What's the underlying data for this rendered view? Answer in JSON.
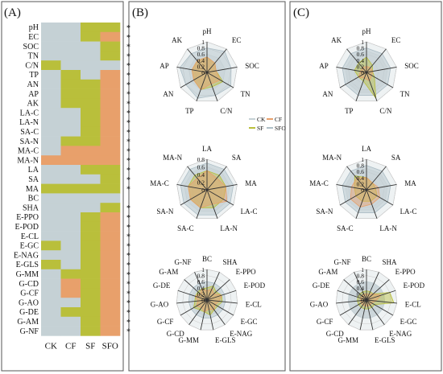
{
  "colors": {
    "CK": "#c5d1d5",
    "CF": "#e8a06b",
    "SF": "#b9bf3b",
    "SFO": "#aebfc7",
    "panel_border": "#555555",
    "divider": "#333333"
  },
  "chart_data": [
    {
      "type": "heatmap",
      "panel": "(A)",
      "columns": [
        "CK",
        "CF",
        "SF",
        "SFO"
      ],
      "rows": [
        "pH",
        "EC",
        "SOC",
        "TN",
        "C/N",
        "TP",
        "AN",
        "AP",
        "AK",
        "LA-C",
        "LA-N",
        "SA-C",
        "SA-N",
        "MA-C",
        "MA-N",
        "LA",
        "SA",
        "MA",
        "BC",
        "SHA",
        "E-PPO",
        "E-POD",
        "E-CL",
        "E-GC",
        "E-NAG",
        "E-GLS",
        "G-MM",
        "G-CD",
        "G-CF",
        "G-AO",
        "G-DE",
        "G-AM",
        "G-NF"
      ],
      "cells": [
        [
          "CK",
          "CK",
          "SF",
          "SF"
        ],
        [
          "CK",
          "CK",
          "SF",
          "CF"
        ],
        [
          "CK",
          "CK",
          "CK",
          "SF"
        ],
        [
          "CK",
          "CK",
          "CK",
          "SF"
        ],
        [
          "SF",
          "CK",
          "CK",
          "CK"
        ],
        [
          "CK",
          "SF",
          "CK",
          "CF"
        ],
        [
          "CK",
          "SF",
          "SF",
          "CF"
        ],
        [
          "CK",
          "SF",
          "SF",
          "CF"
        ],
        [
          "CK",
          "SF",
          "SF",
          "CF"
        ],
        [
          "CK",
          "CK",
          "SF",
          "CF"
        ],
        [
          "CK",
          "CK",
          "SF",
          "CF"
        ],
        [
          "CK",
          "CK",
          "SF",
          "CF"
        ],
        [
          "CK",
          "SF",
          "SF",
          "CF"
        ],
        [
          "CK",
          "CF",
          "CF",
          "CF"
        ],
        [
          "CF",
          "CF",
          "CF",
          "CF"
        ],
        [
          "CK",
          "CK",
          "SF",
          "SF"
        ],
        [
          "CK",
          "CK",
          "CK",
          "SF"
        ],
        [
          "SF",
          "SF",
          "SF",
          "SF"
        ],
        [
          "CK",
          "CK",
          "CK",
          "CK"
        ],
        [
          "CK",
          "CK",
          "CK",
          "SF"
        ],
        [
          "CK",
          "CK",
          "SF",
          "CF"
        ],
        [
          "CK",
          "CK",
          "SF",
          "CF"
        ],
        [
          "CK",
          "CK",
          "SF",
          "CF"
        ],
        [
          "SF",
          "CK",
          "SF",
          "CF"
        ],
        [
          "CK",
          "CK",
          "SF",
          "CF"
        ],
        [
          "SF",
          "CK",
          "SF",
          "CF"
        ],
        [
          "CK",
          "SF",
          "SF",
          "CF"
        ],
        [
          "CK",
          "CF",
          "SF",
          "CF"
        ],
        [
          "CK",
          "CF",
          "SF",
          "CF"
        ],
        [
          "CK",
          "CK",
          "SF",
          "CF"
        ],
        [
          "CK",
          "SF",
          "SF",
          "CF"
        ],
        [
          "CK",
          "CK",
          "SF",
          "CF"
        ],
        [
          "CK",
          "CK",
          "SF",
          "CF"
        ]
      ],
      "significance": [
        "*",
        "*",
        "*",
        "*",
        "*",
        "*",
        "*",
        "*",
        "*",
        "*",
        "*",
        "*",
        "*",
        "*",
        "*",
        "*",
        "*",
        "*",
        "",
        "*",
        "*",
        "*",
        "*",
        "*",
        "*",
        "*",
        "*",
        "*",
        "*",
        "*",
        "*",
        "*",
        "*"
      ]
    },
    {
      "type": "radar",
      "panel": "(B)",
      "legend": [
        "CK",
        "CF",
        "SF",
        "SFO"
      ],
      "charts": [
        {
          "axes": [
            "pH",
            "EC",
            "SOC",
            "TN",
            "C/N",
            "TP",
            "AN",
            "AP",
            "AK"
          ],
          "ticks": [
            "0",
            "0.2",
            "0.4",
            "0.6",
            "0.8",
            "1"
          ],
          "max": 1,
          "series": {
            "CK": [
              0.6,
              0.6,
              0.6,
              0.6,
              0.6,
              0.6,
              0.6,
              0.6,
              0.6
            ],
            "CF": [
              0.5,
              0.4,
              0.3,
              0.5,
              0.4,
              0.6,
              0.5,
              0.5,
              0.5
            ],
            "SF": [
              0.5,
              0.4,
              0.3,
              0.6,
              0.5,
              0.6,
              0.5,
              0.5,
              0.5
            ],
            "SFO": [
              0.8,
              0.9,
              0.8,
              0.9,
              0.8,
              0.9,
              0.8,
              0.9,
              0.8
            ]
          }
        },
        {
          "axes": [
            "LA",
            "SA",
            "MA",
            "LA-C",
            "LA-N",
            "SA-C",
            "SA-N",
            "MA-C",
            "MA-N"
          ],
          "ticks": [
            "0",
            "0.2",
            "0.4",
            "0.6",
            "0.8"
          ],
          "max": 0.8,
          "series": {
            "CK": [
              0.6,
              0.6,
              0.6,
              0.6,
              0.6,
              0.6,
              0.6,
              0.6,
              0.6
            ],
            "CF": [
              0.5,
              0.4,
              0.5,
              0.6,
              0.4,
              0.5,
              0.5,
              0.5,
              0.4
            ],
            "SF": [
              0.5,
              0.5,
              0.5,
              0.5,
              0.5,
              0.5,
              0.5,
              0.5,
              0.5
            ],
            "SFO": [
              0.7,
              0.7,
              0.7,
              0.7,
              0.7,
              0.7,
              0.7,
              0.7,
              0.7
            ]
          }
        },
        {
          "axes": [
            "BC",
            "SHA",
            "E-PPO",
            "E-POD",
            "E-CL",
            "E-GC",
            "E-NAG",
            "E-GLS",
            "G-MM",
            "G-CD",
            "G-CF",
            "G-AO",
            "G-DE",
            "G-AM",
            "G-NF"
          ],
          "ticks": [
            "0",
            "0.2",
            "0.4",
            "0.6",
            "0.8",
            "1"
          ],
          "max": 1,
          "series": {
            "CK": [
              0.5,
              0.5,
              0.5,
              0.5,
              0.5,
              0.5,
              0.5,
              0.5,
              0.5,
              0.5,
              0.5,
              0.5,
              0.5,
              0.5,
              0.5
            ],
            "CF": [
              0.3,
              0.4,
              0.3,
              0.5,
              0.4,
              0.3,
              0.4,
              0.3,
              0.4,
              0.3,
              0.4,
              0.3,
              0.4,
              0.3,
              0.4
            ],
            "SF": [
              0.4,
              0.5,
              0.4,
              0.5,
              0.5,
              0.4,
              0.4,
              0.5,
              0.4,
              0.4,
              0.5,
              0.4,
              0.4,
              0.4,
              0.4
            ],
            "SFO": [
              0.6,
              0.6,
              0.6,
              0.6,
              0.6,
              0.6,
              0.6,
              0.6,
              0.6,
              0.6,
              0.6,
              0.6,
              0.6,
              0.6,
              0.6
            ]
          }
        }
      ]
    },
    {
      "type": "radar",
      "panel": "(C)",
      "legend": [],
      "charts": [
        {
          "axes": [
            "pH",
            "EC",
            "SOC",
            "TN",
            "C/N",
            "TP",
            "AN",
            "AP",
            "AK"
          ],
          "ticks": [
            "0",
            "0.2",
            "0.4",
            "0.6",
            "0.8",
            "1"
          ],
          "max": 1,
          "series": {
            "CK": [
              0.7,
              0.7,
              0.7,
              0.7,
              0.7,
              0.7,
              0.7,
              0.7,
              0.7
            ],
            "CF": [
              0.2,
              0.2,
              0.2,
              0.2,
              0.3,
              0.2,
              0.3,
              0.2,
              0.2
            ],
            "SF": [
              0.5,
              0.3,
              0.2,
              0.3,
              0.9,
              0.3,
              0.3,
              0.4,
              0.4
            ],
            "SFO": [
              0.8,
              0.8,
              0.8,
              0.8,
              0.8,
              0.8,
              0.8,
              0.8,
              0.8
            ]
          }
        },
        {
          "axes": [
            "LA",
            "SA",
            "MA",
            "LA-C",
            "LA-N",
            "SA-C",
            "SA-N",
            "MA-C",
            "MA-N"
          ],
          "ticks": [
            "0",
            "0.2",
            "0.4",
            "0.6",
            "0.8",
            "1"
          ],
          "max": 1,
          "series": {
            "CK": [
              0.7,
              0.7,
              0.7,
              0.7,
              0.7,
              0.7,
              0.7,
              0.7,
              0.7
            ],
            "CF": [
              0.4,
              0.3,
              0.4,
              0.5,
              0.5,
              0.6,
              0.6,
              0.5,
              0.5
            ],
            "SF": [
              0.4,
              0.3,
              0.3,
              0.4,
              0.4,
              0.4,
              0.4,
              0.4,
              0.6
            ],
            "SFO": [
              0.8,
              0.8,
              0.8,
              0.8,
              0.8,
              0.8,
              0.8,
              0.8,
              0.8
            ]
          }
        },
        {
          "axes": [
            "BC",
            "SHA",
            "E-PPO",
            "E-POD",
            "E-CL",
            "E-GC",
            "E-NAG",
            "E-GLS",
            "G-MM",
            "G-CD",
            "G-CF",
            "G-AO",
            "G-DE",
            "G-AM",
            "G-NF"
          ],
          "ticks": [
            "0",
            "0.2",
            "0.4",
            "0.6",
            "0.8",
            "1"
          ],
          "max": 1,
          "series": {
            "CK": [
              0.6,
              0.6,
              0.6,
              0.6,
              0.6,
              0.6,
              0.6,
              0.6,
              0.6,
              0.6,
              0.6,
              0.6,
              0.6,
              0.6,
              0.6
            ],
            "CF": [
              0.2,
              0.2,
              0.3,
              0.5,
              0.3,
              0.2,
              0.2,
              0.2,
              0.2,
              0.2,
              0.2,
              0.2,
              0.2,
              0.2,
              0.2
            ],
            "SF": [
              0.3,
              0.3,
              0.3,
              0.8,
              0.9,
              0.3,
              0.3,
              0.3,
              0.3,
              0.3,
              0.3,
              0.3,
              0.3,
              0.3,
              0.3
            ],
            "SFO": [
              0.6,
              0.6,
              0.6,
              0.6,
              0.6,
              0.6,
              0.6,
              0.6,
              0.6,
              0.6,
              0.6,
              0.6,
              0.6,
              0.6,
              0.6
            ]
          }
        }
      ]
    }
  ]
}
